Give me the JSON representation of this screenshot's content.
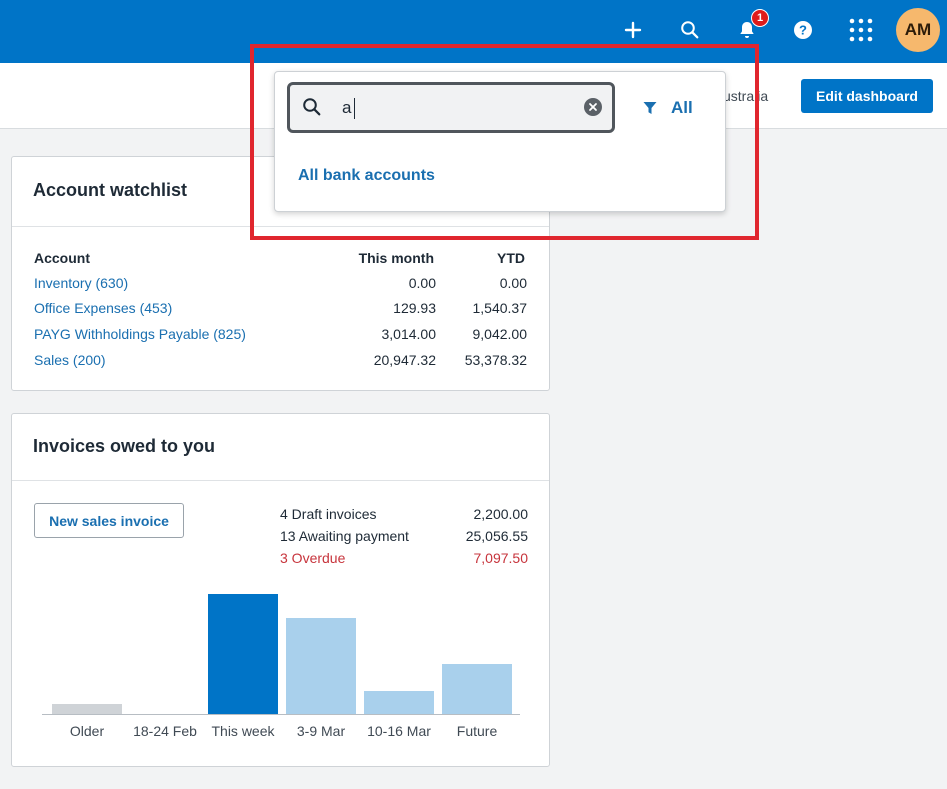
{
  "topbar": {
    "icons": [
      "plus-icon",
      "search-icon",
      "bell-icon",
      "help-icon",
      "apps-grid-icon"
    ],
    "notification_count": "1",
    "avatar_initials": "AM",
    "colors": {
      "bar": "#0074c7",
      "avatar": "#f6b86d",
      "badge": "#de1b1b"
    }
  },
  "subheader": {
    "org_name_partial": "ustralia",
    "edit_dashboard_label": "Edit dashboard"
  },
  "search_dropdown": {
    "query": "a",
    "filter_label": "All",
    "results": [
      "All bank accounts"
    ]
  },
  "watchlist": {
    "title": "Account watchlist",
    "headers": {
      "account": "Account",
      "this_month": "This month",
      "ytd": "YTD"
    },
    "rows": [
      {
        "account": "Inventory (630)",
        "this_month": "0.00",
        "ytd": "0.00"
      },
      {
        "account": "Office Expenses (453)",
        "this_month": "129.93",
        "ytd": "1,540.37"
      },
      {
        "account": "PAYG Withholdings Payable (825)",
        "this_month": "3,014.00",
        "ytd": "9,042.00"
      },
      {
        "account": "Sales (200)",
        "this_month": "20,947.32",
        "ytd": "53,378.32"
      }
    ]
  },
  "invoices": {
    "title": "Invoices owed to you",
    "new_button_label": "New sales invoice",
    "summary": [
      {
        "label": "4 Draft invoices",
        "value": "2,200.00",
        "status": "normal"
      },
      {
        "label": "13 Awaiting payment",
        "value": "25,056.55",
        "status": "normal"
      },
      {
        "label": "3 Overdue",
        "value": "7,097.50",
        "status": "overdue"
      }
    ]
  },
  "chart_data": {
    "type": "bar",
    "categories": [
      "Older",
      "18-24 Feb",
      "This week",
      "3-9 Mar",
      "10-16 Mar",
      "Future"
    ],
    "values": [
      0.08,
      0,
      1.0,
      0.8,
      0.19,
      0.42
    ],
    "highlighted_category": "This week",
    "colors": {
      "older": "#cfd3d7",
      "current": "#0074c7",
      "future": "#a9d0ec"
    },
    "ylim": [
      0,
      1
    ]
  }
}
